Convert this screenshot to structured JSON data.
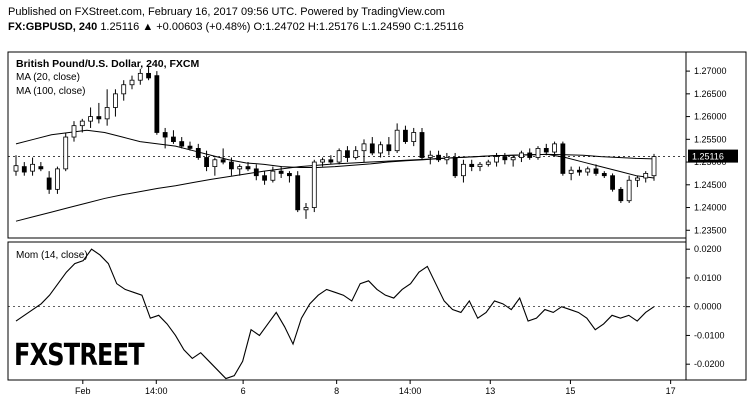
{
  "header": {
    "line1": "Published on FXStreet.com, February 16, 2017 09:56 UTC. Powered by TradingView.com",
    "symbol": "FX:GBPUSD, 240",
    "quote": "1.25116 ▲ +0.00603 (+0.48%) O:1.24702 H:1.25176 L:1.24590 C:1.25116"
  },
  "legend": {
    "title": "British Pound/U.S. Dollar, 240, FXCM",
    "ma20": "MA (20, close)",
    "ma100": "MA (100, close)",
    "mom": "Mom (14, close)"
  },
  "logo_text": "FXSTREET",
  "colors": {
    "up": "#ffffff",
    "down": "#000000",
    "line": "#000000",
    "grid": "#e6e6e6"
  },
  "chart_data": [
    {
      "type": "candlestick",
      "title": "British Pound/U.S. Dollar, 240, FXCM",
      "ylim": [
        1.2333,
        1.2742
      ],
      "yticks": [
        "1.27000",
        "1.26500",
        "1.26000",
        "1.25500",
        "1.25000",
        "1.24500",
        "1.24000",
        "1.23500"
      ],
      "xticks": [
        "Feb",
        "14:00",
        "6",
        "8",
        "14:00",
        "13",
        "15",
        "17"
      ],
      "last_price_label": "1.25116",
      "candles": [
        {
          "o": 1.248,
          "h": 1.2515,
          "l": 1.247,
          "c": 1.2492
        },
        {
          "o": 1.249,
          "h": 1.25,
          "l": 1.247,
          "c": 1.2478
        },
        {
          "o": 1.248,
          "h": 1.251,
          "l": 1.247,
          "c": 1.2495
        },
        {
          "o": 1.249,
          "h": 1.25,
          "l": 1.248,
          "c": 1.2485
        },
        {
          "o": 1.2465,
          "h": 1.248,
          "l": 1.243,
          "c": 1.244
        },
        {
          "o": 1.244,
          "h": 1.249,
          "l": 1.243,
          "c": 1.2485
        },
        {
          "o": 1.2485,
          "h": 1.2565,
          "l": 1.248,
          "c": 1.2555
        },
        {
          "o": 1.2555,
          "h": 1.259,
          "l": 1.2545,
          "c": 1.258
        },
        {
          "o": 1.258,
          "h": 1.2595,
          "l": 1.2565,
          "c": 1.259
        },
        {
          "o": 1.259,
          "h": 1.262,
          "l": 1.2575,
          "c": 1.26
        },
        {
          "o": 1.26,
          "h": 1.263,
          "l": 1.2585,
          "c": 1.2595
        },
        {
          "o": 1.2595,
          "h": 1.266,
          "l": 1.258,
          "c": 1.262
        },
        {
          "o": 1.262,
          "h": 1.266,
          "l": 1.26,
          "c": 1.265
        },
        {
          "o": 1.265,
          "h": 1.268,
          "l": 1.2635,
          "c": 1.267
        },
        {
          "o": 1.267,
          "h": 1.269,
          "l": 1.266,
          "c": 1.268
        },
        {
          "o": 1.268,
          "h": 1.2705,
          "l": 1.267,
          "c": 1.2695
        },
        {
          "o": 1.2695,
          "h": 1.271,
          "l": 1.268,
          "c": 1.2685
        },
        {
          "o": 1.269,
          "h": 1.27,
          "l": 1.256,
          "c": 1.2565
        },
        {
          "o": 1.2565,
          "h": 1.2575,
          "l": 1.253,
          "c": 1.2555
        },
        {
          "o": 1.2555,
          "h": 1.257,
          "l": 1.254,
          "c": 1.2545
        },
        {
          "o": 1.2545,
          "h": 1.2555,
          "l": 1.253,
          "c": 1.2535
        },
        {
          "o": 1.2535,
          "h": 1.2545,
          "l": 1.2525,
          "c": 1.253
        },
        {
          "o": 1.253,
          "h": 1.254,
          "l": 1.2505,
          "c": 1.251
        },
        {
          "o": 1.251,
          "h": 1.2525,
          "l": 1.248,
          "c": 1.249
        },
        {
          "o": 1.249,
          "h": 1.251,
          "l": 1.247,
          "c": 1.2505
        },
        {
          "o": 1.2505,
          "h": 1.253,
          "l": 1.2495,
          "c": 1.25
        },
        {
          "o": 1.25,
          "h": 1.251,
          "l": 1.247,
          "c": 1.2485
        },
        {
          "o": 1.2485,
          "h": 1.2495,
          "l": 1.247,
          "c": 1.249
        },
        {
          "o": 1.249,
          "h": 1.25,
          "l": 1.248,
          "c": 1.2485
        },
        {
          "o": 1.2485,
          "h": 1.2495,
          "l": 1.246,
          "c": 1.247
        },
        {
          "o": 1.247,
          "h": 1.248,
          "l": 1.245,
          "c": 1.246
        },
        {
          "o": 1.246,
          "h": 1.249,
          "l": 1.2455,
          "c": 1.248
        },
        {
          "o": 1.248,
          "h": 1.249,
          "l": 1.2465,
          "c": 1.2475
        },
        {
          "o": 1.2475,
          "h": 1.248,
          "l": 1.2455,
          "c": 1.247
        },
        {
          "o": 1.247,
          "h": 1.248,
          "l": 1.239,
          "c": 1.2395
        },
        {
          "o": 1.2395,
          "h": 1.241,
          "l": 1.2375,
          "c": 1.24
        },
        {
          "o": 1.24,
          "h": 1.2505,
          "l": 1.239,
          "c": 1.25
        },
        {
          "o": 1.25,
          "h": 1.251,
          "l": 1.249,
          "c": 1.2505
        },
        {
          "o": 1.2505,
          "h": 1.2515,
          "l": 1.2495,
          "c": 1.25
        },
        {
          "o": 1.25,
          "h": 1.253,
          "l": 1.2495,
          "c": 1.2525
        },
        {
          "o": 1.2525,
          "h": 1.2535,
          "l": 1.25,
          "c": 1.251
        },
        {
          "o": 1.251,
          "h": 1.2535,
          "l": 1.2505,
          "c": 1.2525
        },
        {
          "o": 1.2525,
          "h": 1.255,
          "l": 1.25,
          "c": 1.254
        },
        {
          "o": 1.254,
          "h": 1.2555,
          "l": 1.2515,
          "c": 1.252
        },
        {
          "o": 1.252,
          "h": 1.2545,
          "l": 1.251,
          "c": 1.2538
        },
        {
          "o": 1.2538,
          "h": 1.2555,
          "l": 1.2515,
          "c": 1.2525
        },
        {
          "o": 1.2525,
          "h": 1.2585,
          "l": 1.252,
          "c": 1.257
        },
        {
          "o": 1.257,
          "h": 1.258,
          "l": 1.254,
          "c": 1.2545
        },
        {
          "o": 1.2545,
          "h": 1.2575,
          "l": 1.2535,
          "c": 1.2565
        },
        {
          "o": 1.2565,
          "h": 1.2575,
          "l": 1.2505,
          "c": 1.251
        },
        {
          "o": 1.251,
          "h": 1.2525,
          "l": 1.2495,
          "c": 1.2515
        },
        {
          "o": 1.2515,
          "h": 1.2525,
          "l": 1.25,
          "c": 1.2505
        },
        {
          "o": 1.2505,
          "h": 1.252,
          "l": 1.2495,
          "c": 1.251
        },
        {
          "o": 1.251,
          "h": 1.252,
          "l": 1.2465,
          "c": 1.247
        },
        {
          "o": 1.247,
          "h": 1.2505,
          "l": 1.2455,
          "c": 1.2495
        },
        {
          "o": 1.2495,
          "h": 1.2505,
          "l": 1.248,
          "c": 1.249
        },
        {
          "o": 1.249,
          "h": 1.25,
          "l": 1.248,
          "c": 1.2495
        },
        {
          "o": 1.2495,
          "h": 1.2505,
          "l": 1.249,
          "c": 1.25
        },
        {
          "o": 1.25,
          "h": 1.252,
          "l": 1.249,
          "c": 1.2512
        },
        {
          "o": 1.2512,
          "h": 1.252,
          "l": 1.2495,
          "c": 1.2505
        },
        {
          "o": 1.2505,
          "h": 1.2515,
          "l": 1.249,
          "c": 1.251
        },
        {
          "o": 1.251,
          "h": 1.2525,
          "l": 1.25,
          "c": 1.252
        },
        {
          "o": 1.252,
          "h": 1.253,
          "l": 1.2505,
          "c": 1.251
        },
        {
          "o": 1.251,
          "h": 1.2535,
          "l": 1.2505,
          "c": 1.253
        },
        {
          "o": 1.253,
          "h": 1.254,
          "l": 1.2515,
          "c": 1.2522
        },
        {
          "o": 1.2522,
          "h": 1.2545,
          "l": 1.2515,
          "c": 1.254
        },
        {
          "o": 1.254,
          "h": 1.2545,
          "l": 1.247,
          "c": 1.2475
        },
        {
          "o": 1.2475,
          "h": 1.249,
          "l": 1.246,
          "c": 1.2482
        },
        {
          "o": 1.2482,
          "h": 1.249,
          "l": 1.247,
          "c": 1.2478
        },
        {
          "o": 1.2478,
          "h": 1.249,
          "l": 1.247,
          "c": 1.2485
        },
        {
          "o": 1.2485,
          "h": 1.2495,
          "l": 1.247,
          "c": 1.2475
        },
        {
          "o": 1.2475,
          "h": 1.248,
          "l": 1.2465,
          "c": 1.247
        },
        {
          "o": 1.247,
          "h": 1.2475,
          "l": 1.2435,
          "c": 1.244
        },
        {
          "o": 1.244,
          "h": 1.2445,
          "l": 1.241,
          "c": 1.2415
        },
        {
          "o": 1.2415,
          "h": 1.247,
          "l": 1.241,
          "c": 1.246
        },
        {
          "o": 1.246,
          "h": 1.247,
          "l": 1.2445,
          "c": 1.2465
        },
        {
          "o": 1.2465,
          "h": 1.248,
          "l": 1.2455,
          "c": 1.2475
        },
        {
          "o": 1.247,
          "h": 1.2518,
          "l": 1.2459,
          "c": 1.2512
        }
      ],
      "ma20": [
        1.254,
        1.255,
        1.256,
        1.2565,
        1.257,
        1.2565,
        1.2555,
        1.2545,
        1.254,
        1.2535,
        1.2525,
        1.2515,
        1.2505,
        1.2498,
        1.2495,
        1.249,
        1.2488,
        1.2488,
        1.249,
        1.2493,
        1.2496,
        1.25,
        1.2503,
        1.2505,
        1.2508,
        1.251,
        1.2512,
        1.2514,
        1.2515,
        1.2516,
        1.2517,
        1.251,
        1.25,
        1.249,
        1.248,
        1.247,
        1.2465
      ],
      "ma100": [
        1.237,
        1.238,
        1.239,
        1.24,
        1.241,
        1.242,
        1.2428,
        1.2435,
        1.2442,
        1.2448,
        1.2455,
        1.2462,
        1.2468,
        1.2474,
        1.248,
        1.2485,
        1.249,
        1.2493,
        1.2496,
        1.2498,
        1.25,
        1.2502,
        1.2504,
        1.2506,
        1.2508,
        1.251,
        1.2512,
        1.2514,
        1.2515,
        1.2516,
        1.2517,
        1.2516,
        1.2515,
        1.2512,
        1.251,
        1.2508,
        1.2507
      ]
    },
    {
      "type": "line",
      "title": "Mom (14, close)",
      "ylim": [
        -0.0255,
        0.0225
      ],
      "yticks": [
        "0.0200",
        "0.0100",
        "0.0000",
        "-0.0100",
        "-0.0200"
      ],
      "values": [
        -0.005,
        -0.003,
        -0.001,
        0.001,
        0.004,
        0.008,
        0.012,
        0.015,
        0.016,
        0.02,
        0.018,
        0.015,
        0.008,
        0.006,
        0.005,
        0.004,
        -0.004,
        -0.003,
        -0.006,
        -0.01,
        -0.015,
        -0.018,
        -0.016,
        -0.019,
        -0.022,
        -0.025,
        -0.024,
        -0.019,
        -0.008,
        -0.01,
        -0.006,
        -0.002,
        -0.007,
        -0.013,
        -0.004,
        0.001,
        0.004,
        0.006,
        0.005,
        0.004,
        0.002,
        0.008,
        0.009,
        0.006,
        0.004,
        0.003,
        0.006,
        0.008,
        0.012,
        0.014,
        0.008,
        0.002,
        -0.001,
        -0.002,
        0.002,
        -0.004,
        -0.002,
        0.002,
        0.001,
        -0.001,
        0.003,
        -0.005,
        -0.004,
        -0.001,
        -0.002,
        0.0,
        -0.001,
        -0.002,
        -0.004,
        -0.008,
        -0.006,
        -0.003,
        -0.004,
        -0.003,
        -0.005,
        -0.002,
        0.0
      ]
    }
  ]
}
